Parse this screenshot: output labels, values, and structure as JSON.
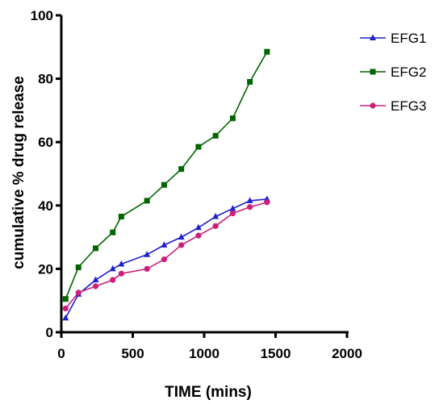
{
  "chart_data": {
    "type": "line",
    "title": "",
    "xlabel": "TIME  (mins)",
    "ylabel": "cumulative % drug release",
    "xlim": [
      0,
      2000
    ],
    "ylim": [
      0,
      100
    ],
    "xticks": [
      0,
      500,
      1000,
      1500,
      2000
    ],
    "yticks": [
      0,
      20,
      40,
      60,
      80,
      100
    ],
    "grid": false,
    "legend_position": "top-right",
    "series": [
      {
        "name": "EFG1",
        "color": "#1f1fcc",
        "marker": "triangle",
        "x": [
          30,
          120,
          240,
          360,
          420,
          600,
          720,
          840,
          960,
          1080,
          1200,
          1320,
          1440
        ],
        "y": [
          4.5,
          12,
          16.5,
          20,
          21.5,
          24.5,
          27.5,
          30,
          33,
          36.5,
          39,
          41.5,
          42
        ]
      },
      {
        "name": "EFG2",
        "color": "#006400",
        "marker": "square",
        "x": [
          30,
          120,
          240,
          360,
          420,
          600,
          720,
          840,
          960,
          1080,
          1200,
          1320,
          1440
        ],
        "y": [
          10.5,
          20.5,
          26.5,
          31.5,
          36.5,
          41.5,
          46.5,
          51.5,
          58.5,
          62,
          67.5,
          79,
          88.5
        ]
      },
      {
        "name": "EFG3",
        "color": "#cc1f7a",
        "marker": "circle",
        "x": [
          30,
          120,
          240,
          360,
          420,
          600,
          720,
          840,
          960,
          1080,
          1200,
          1320,
          1440
        ],
        "y": [
          7.5,
          12.5,
          14.5,
          16.5,
          18.5,
          20,
          23,
          27.5,
          30.5,
          33.5,
          37.5,
          39.5,
          41
        ]
      }
    ]
  }
}
